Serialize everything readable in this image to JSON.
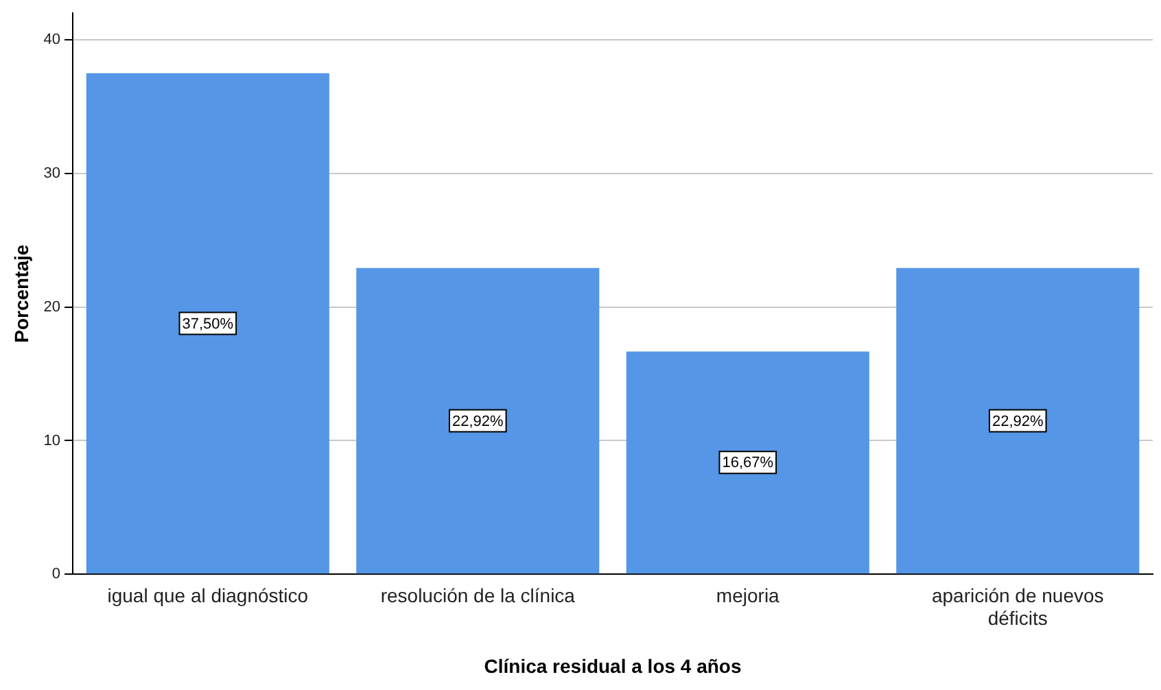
{
  "chart_data": {
    "type": "bar",
    "xlabel": "Clínica residual a los 4 años",
    "ylabel": "Porcentaje",
    "categories": [
      "igual que al diagnóstico",
      "resolución de la clínica",
      "mejoria",
      "aparición de nuevos déficits"
    ],
    "values": [
      37.5,
      22.92,
      16.67,
      22.92
    ],
    "value_labels": [
      "37,50%",
      "22,92%",
      "16,67%",
      "22,92%"
    ],
    "color": "#5596e6",
    "ylim": [
      0,
      42
    ],
    "yticks": [
      0,
      10,
      20,
      30,
      40
    ],
    "grid": "y",
    "legend": false
  }
}
